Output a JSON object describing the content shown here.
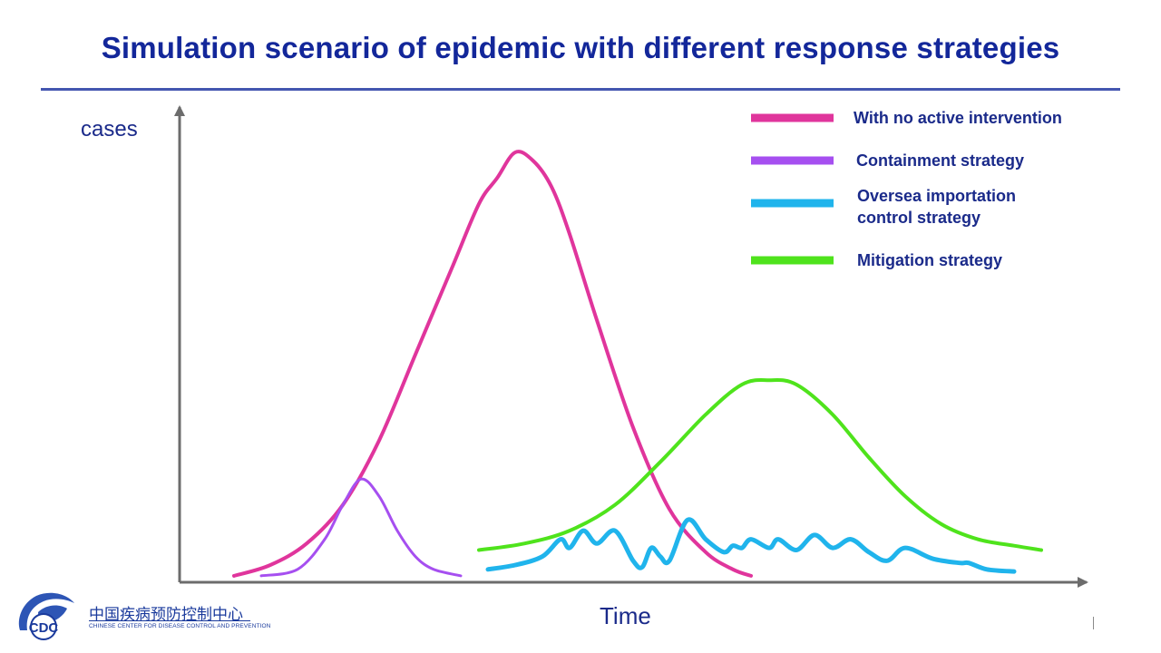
{
  "slide": {
    "title": "Simulation scenario of epidemic with different response strategies"
  },
  "logo": {
    "name": "CDC",
    "chinese_name": "中国疾病预防控制中心",
    "english_name": "CHINESE CENTER FOR DISEASE CONTROL AND PREVENTION",
    "colors": {
      "primary": "#1a3a9c",
      "map": "#2d55b5"
    }
  },
  "chart_data": {
    "type": "line",
    "xlabel": "Time",
    "ylabel": "cases",
    "axis_ticks": false,
    "grid": false,
    "legend_position": "top-right",
    "xlim": [
      0,
      100
    ],
    "ylim": [
      0,
      100
    ],
    "series": [
      {
        "name": "With no active intervention",
        "color": "#e0359c",
        "points": [
          [
            6,
            1.5
          ],
          [
            10,
            4
          ],
          [
            14,
            9
          ],
          [
            18,
            18
          ],
          [
            22,
            33
          ],
          [
            26,
            53
          ],
          [
            30,
            73
          ],
          [
            33,
            88
          ],
          [
            35,
            94
          ],
          [
            37,
            100
          ],
          [
            39,
            98
          ],
          [
            41,
            92
          ],
          [
            43,
            81
          ],
          [
            46,
            61
          ],
          [
            50,
            36
          ],
          [
            54,
            17
          ],
          [
            58,
            7
          ],
          [
            61,
            3
          ],
          [
            63,
            1.5
          ]
        ]
      },
      {
        "name": "Containment strategy",
        "color": "#a64ff0",
        "points": [
          [
            9,
            1.5
          ],
          [
            13,
            3
          ],
          [
            16,
            10
          ],
          [
            18,
            18
          ],
          [
            20,
            24
          ],
          [
            22,
            20
          ],
          [
            24,
            12
          ],
          [
            26,
            6
          ],
          [
            28,
            3
          ],
          [
            31,
            1.5
          ]
        ]
      },
      {
        "name": "Oversea importation control strategy",
        "color": "#20b4ec",
        "points": [
          [
            34,
            3
          ],
          [
            37,
            4
          ],
          [
            40,
            6
          ],
          [
            42,
            10
          ],
          [
            43,
            8
          ],
          [
            44.5,
            12
          ],
          [
            46,
            9
          ],
          [
            48,
            12
          ],
          [
            50,
            5
          ],
          [
            51,
            3.5
          ],
          [
            52,
            8
          ],
          [
            53,
            6
          ],
          [
            54,
            5
          ],
          [
            56,
            14.5
          ],
          [
            58,
            10
          ],
          [
            60,
            7
          ],
          [
            61,
            8.5
          ],
          [
            62,
            8
          ],
          [
            63,
            10
          ],
          [
            65,
            8
          ],
          [
            66,
            10
          ],
          [
            68,
            7.5
          ],
          [
            70,
            11
          ],
          [
            72,
            8
          ],
          [
            74,
            10
          ],
          [
            76,
            7
          ],
          [
            78,
            5
          ],
          [
            80,
            8
          ],
          [
            83,
            5.5
          ],
          [
            86,
            4.5
          ],
          [
            87,
            4.5
          ],
          [
            89,
            3
          ],
          [
            92,
            2.5
          ]
        ]
      },
      {
        "name": "Mitigation strategy",
        "color": "#4fe31c",
        "points": [
          [
            33,
            7.5
          ],
          [
            38,
            9
          ],
          [
            43,
            12
          ],
          [
            48,
            18
          ],
          [
            53,
            28
          ],
          [
            58,
            39
          ],
          [
            62,
            46
          ],
          [
            65,
            47
          ],
          [
            68,
            46
          ],
          [
            72,
            39
          ],
          [
            76,
            29
          ],
          [
            80,
            20
          ],
          [
            84,
            13.5
          ],
          [
            88,
            10
          ],
          [
            92,
            8.5
          ],
          [
            95,
            7.5
          ]
        ]
      }
    ]
  }
}
